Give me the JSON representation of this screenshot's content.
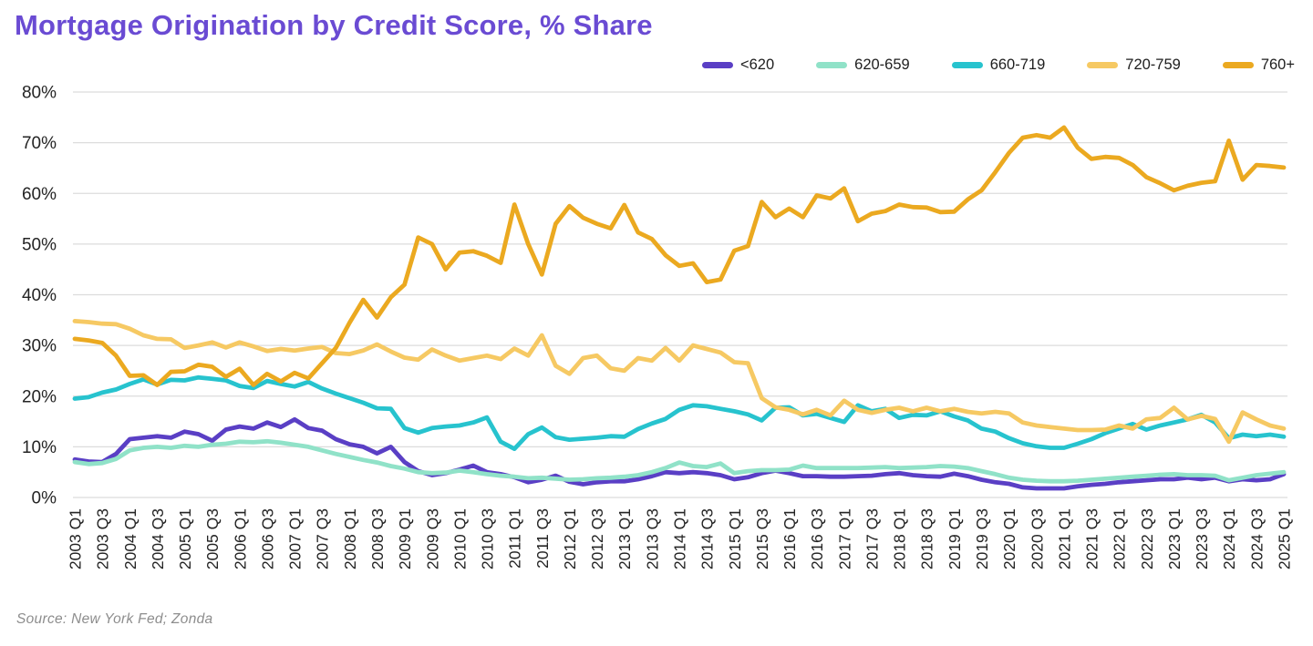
{
  "title": "Mortgage Origination by Credit Score, % Share",
  "source": "Source: New York Fed; Zonda",
  "colors": {
    "title_text": "#6a4bd3",
    "axis_text": "#242424",
    "gridline": "#dcdcdc",
    "source_text": "#8d8d8d",
    "background": "#ffffff"
  },
  "chart_data": {
    "type": "line",
    "title": "Mortgage Origination by Credit Score, % Share",
    "xlabel": "",
    "ylabel": "",
    "ylim": [
      0,
      80
    ],
    "y_ticks": [
      "80%",
      "70%",
      "60%",
      "50%",
      "40%",
      "30%",
      "20%",
      "10%",
      "0%"
    ],
    "grid": true,
    "legend_position": "top-right",
    "x_tick_step": 2,
    "x_labels": [
      "2003 Q1",
      "2003 Q2",
      "2003 Q3",
      "2003 Q4",
      "2004 Q1",
      "2004 Q2",
      "2004 Q3",
      "2004 Q4",
      "2005 Q1",
      "2005 Q2",
      "2005 Q3",
      "2005 Q4",
      "2006 Q1",
      "2006 Q2",
      "2006 Q3",
      "2006 Q4",
      "2007 Q1",
      "2007 Q2",
      "2007 Q3",
      "2007 Q4",
      "2008 Q1",
      "2008 Q2",
      "2008 Q3",
      "2008 Q4",
      "2009 Q1",
      "2009 Q2",
      "2009 Q3",
      "2009 Q4",
      "2010 Q1",
      "2010 Q2",
      "2010 Q3",
      "2010 Q4",
      "2011 Q1",
      "2011 Q2",
      "2011 Q3",
      "2011 Q4",
      "2012 Q1",
      "2012 Q2",
      "2012 Q3",
      "2012 Q4",
      "2013 Q1",
      "2013 Q2",
      "2013 Q3",
      "2013 Q4",
      "2014 Q1",
      "2014 Q2",
      "2014 Q3",
      "2014 Q4",
      "2015 Q1",
      "2015 Q2",
      "2015 Q3",
      "2015 Q4",
      "2016 Q1",
      "2016 Q2",
      "2016 Q3",
      "2016 Q4",
      "2017 Q1",
      "2017 Q2",
      "2017 Q3",
      "2017 Q4",
      "2018 Q1",
      "2018 Q2",
      "2018 Q3",
      "2018 Q4",
      "2019 Q1",
      "2019 Q2",
      "2019 Q3",
      "2019 Q4",
      "2020 Q1",
      "2020 Q2",
      "2020 Q3",
      "2020 Q4",
      "2021 Q1",
      "2021 Q2",
      "2021 Q3",
      "2021 Q4",
      "2022 Q1",
      "2022 Q2",
      "2022 Q3",
      "2022 Q4",
      "2023 Q1",
      "2023 Q2",
      "2023 Q3",
      "2023 Q4",
      "2024 Q1",
      "2024 Q2",
      "2024 Q3",
      "2024 Q4",
      "2025 Q1"
    ],
    "series": [
      {
        "name": "<620",
        "color": "#5a3fc5",
        "values": [
          7.5,
          7.1,
          7.0,
          8.6,
          11.5,
          11.8,
          12.1,
          11.8,
          13.0,
          12.5,
          11.2,
          13.4,
          14.0,
          13.6,
          14.8,
          13.9,
          15.4,
          13.7,
          13.2,
          11.5,
          10.5,
          10.0,
          8.7,
          10.0,
          7.0,
          5.2,
          4.4,
          4.8,
          5.5,
          6.3,
          5.0,
          4.6,
          4.0,
          3.0,
          3.5,
          4.3,
          3.1,
          2.6,
          3.0,
          3.2,
          3.2,
          3.6,
          4.2,
          5.0,
          4.8,
          5.0,
          4.8,
          4.4,
          3.6,
          4.0,
          4.8,
          5.3,
          4.8,
          4.2,
          4.2,
          4.1,
          4.1,
          4.2,
          4.3,
          4.6,
          4.8,
          4.4,
          4.2,
          4.1,
          4.7,
          4.2,
          3.5,
          3.0,
          2.7,
          2.0,
          1.8,
          1.8,
          1.8,
          2.2,
          2.5,
          2.7,
          3.0,
          3.2,
          3.4,
          3.6,
          3.6,
          3.9,
          3.6,
          3.9,
          3.2,
          3.6,
          3.4,
          3.6,
          4.6
        ]
      },
      {
        "name": "620-659",
        "color": "#90e2c8",
        "values": [
          7.0,
          6.6,
          6.8,
          7.6,
          9.3,
          9.8,
          10.0,
          9.8,
          10.2,
          10.0,
          10.4,
          10.6,
          11.0,
          10.9,
          11.1,
          10.8,
          10.4,
          10.0,
          9.3,
          8.6,
          8.0,
          7.4,
          6.9,
          6.2,
          5.7,
          5.0,
          4.8,
          4.9,
          5.3,
          5.0,
          4.6,
          4.3,
          4.1,
          3.8,
          3.9,
          3.7,
          3.5,
          3.6,
          3.8,
          3.9,
          4.1,
          4.4,
          5.0,
          5.8,
          6.9,
          6.2,
          6.0,
          6.7,
          4.8,
          5.2,
          5.4,
          5.4,
          5.5,
          6.3,
          5.8,
          5.8,
          5.8,
          5.8,
          5.9,
          6.0,
          5.8,
          5.9,
          6.0,
          6.2,
          6.1,
          5.8,
          5.2,
          4.6,
          3.9,
          3.5,
          3.3,
          3.2,
          3.2,
          3.3,
          3.5,
          3.7,
          3.9,
          4.1,
          4.3,
          4.5,
          4.6,
          4.4,
          4.4,
          4.3,
          3.4,
          3.9,
          4.4,
          4.7,
          5.0
        ]
      },
      {
        "name": "660-719",
        "color": "#27c3ce",
        "values": [
          19.5,
          19.8,
          20.7,
          21.3,
          22.4,
          23.3,
          22.3,
          23.2,
          23.1,
          23.7,
          23.4,
          23.1,
          22.0,
          21.6,
          23.0,
          22.4,
          21.9,
          22.8,
          21.5,
          20.5,
          19.6,
          18.7,
          17.6,
          17.5,
          13.7,
          12.8,
          13.7,
          14.0,
          14.2,
          14.8,
          15.8,
          11.0,
          9.6,
          12.5,
          13.8,
          11.9,
          11.4,
          11.6,
          11.8,
          12.1,
          12.0,
          13.5,
          14.6,
          15.5,
          17.3,
          18.2,
          18.0,
          17.5,
          17.0,
          16.4,
          15.2,
          17.7,
          17.8,
          16.2,
          16.5,
          15.7,
          14.9,
          18.2,
          17.0,
          17.5,
          15.7,
          16.3,
          16.2,
          17.0,
          16.0,
          15.2,
          13.6,
          13.0,
          11.7,
          10.7,
          10.1,
          9.8,
          9.8,
          10.6,
          11.5,
          12.7,
          13.6,
          14.5,
          13.4,
          14.2,
          14.8,
          15.4,
          16.3,
          14.8,
          11.7,
          12.4,
          12.1,
          12.4,
          12.0
        ]
      },
      {
        "name": "720-759",
        "color": "#f6c963",
        "values": [
          34.8,
          34.6,
          34.3,
          34.2,
          33.3,
          32.0,
          31.3,
          31.2,
          29.5,
          30.0,
          30.6,
          29.6,
          30.6,
          29.8,
          28.9,
          29.3,
          29.0,
          29.4,
          29.7,
          28.5,
          28.3,
          29.0,
          30.2,
          28.8,
          27.6,
          27.2,
          29.2,
          28.0,
          27.0,
          27.5,
          28.0,
          27.3,
          29.4,
          28.0,
          32.0,
          26.0,
          24.4,
          27.5,
          28.0,
          25.5,
          25.0,
          27.5,
          27.0,
          29.5,
          27.0,
          30.0,
          29.3,
          28.6,
          26.7,
          26.5,
          19.6,
          17.8,
          17.3,
          16.4,
          17.3,
          16.2,
          19.1,
          17.3,
          16.7,
          17.3,
          17.7,
          17.0,
          17.7,
          17.0,
          17.5,
          16.9,
          16.6,
          16.9,
          16.6,
          14.8,
          14.2,
          13.9,
          13.6,
          13.3,
          13.3,
          13.4,
          14.2,
          13.6,
          15.4,
          15.7,
          17.7,
          15.4,
          16.1,
          15.5,
          11.0,
          16.8,
          15.4,
          14.2,
          13.6
        ]
      },
      {
        "name": "760+",
        "color": "#eba920",
        "values": [
          31.3,
          31.0,
          30.5,
          28.0,
          24.0,
          24.1,
          22.2,
          24.8,
          24.9,
          26.2,
          25.8,
          23.8,
          25.4,
          22.2,
          24.4,
          22.9,
          24.6,
          23.5,
          26.5,
          29.5,
          34.5,
          39.0,
          35.5,
          39.5,
          42.0,
          51.3,
          50.0,
          45.0,
          48.3,
          48.6,
          47.7,
          46.3,
          57.8,
          50.0,
          44.0,
          54.0,
          57.5,
          55.2,
          54.0,
          53.1,
          57.7,
          52.3,
          51.0,
          47.8,
          45.7,
          46.2,
          42.5,
          43.0,
          48.7,
          49.6,
          58.3,
          55.3,
          57.0,
          55.3,
          59.6,
          59.0,
          61.0,
          54.5,
          56.0,
          56.5,
          57.8,
          57.3,
          57.2,
          56.3,
          56.4,
          58.8,
          60.6,
          64.2,
          68.0,
          71.0,
          71.5,
          71.0,
          73.0,
          69.0,
          66.8,
          67.2,
          67.0,
          65.6,
          63.2,
          62.0,
          60.6,
          61.5,
          62.1,
          62.4,
          70.4,
          62.7,
          65.6,
          65.4,
          65.1
        ]
      }
    ]
  }
}
